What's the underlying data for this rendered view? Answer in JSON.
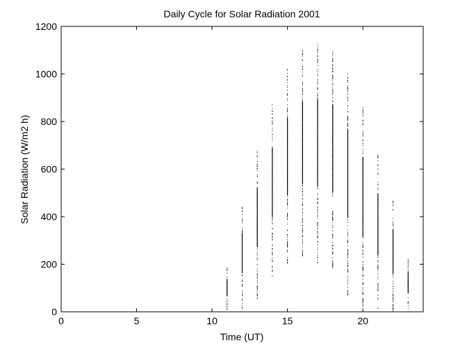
{
  "chart_data": {
    "type": "scatter",
    "title": "Daily Cycle for Solar Radiation 2001",
    "xlabel": "Time (UT)",
    "ylabel": "Solar Radiation (W/m2 h)",
    "xlim": [
      0,
      24
    ],
    "ylim": [
      0,
      1200
    ],
    "xticks": [
      0,
      5,
      10,
      15,
      20
    ],
    "yticks": [
      0,
      200,
      400,
      600,
      800,
      1000,
      1200
    ],
    "grid": false,
    "marker_color": "#000000",
    "hourly_ranges": [
      {
        "x": 11,
        "min": 0,
        "max": 185
      },
      {
        "x": 12,
        "min": 15,
        "max": 440
      },
      {
        "x": 13,
        "min": 55,
        "max": 675
      },
      {
        "x": 14,
        "min": 150,
        "max": 870
      },
      {
        "x": 15,
        "min": 205,
        "max": 1020
      },
      {
        "x": 16,
        "min": 235,
        "max": 1100
      },
      {
        "x": 17,
        "min": 205,
        "max": 1125
      },
      {
        "x": 18,
        "min": 185,
        "max": 1095
      },
      {
        "x": 19,
        "min": 70,
        "max": 1000
      },
      {
        "x": 20,
        "min": 25,
        "max": 860
      },
      {
        "x": 21,
        "min": 15,
        "max": 660
      },
      {
        "x": 22,
        "min": 0,
        "max": 465
      },
      {
        "x": 23,
        "min": 0,
        "max": 220
      }
    ]
  }
}
